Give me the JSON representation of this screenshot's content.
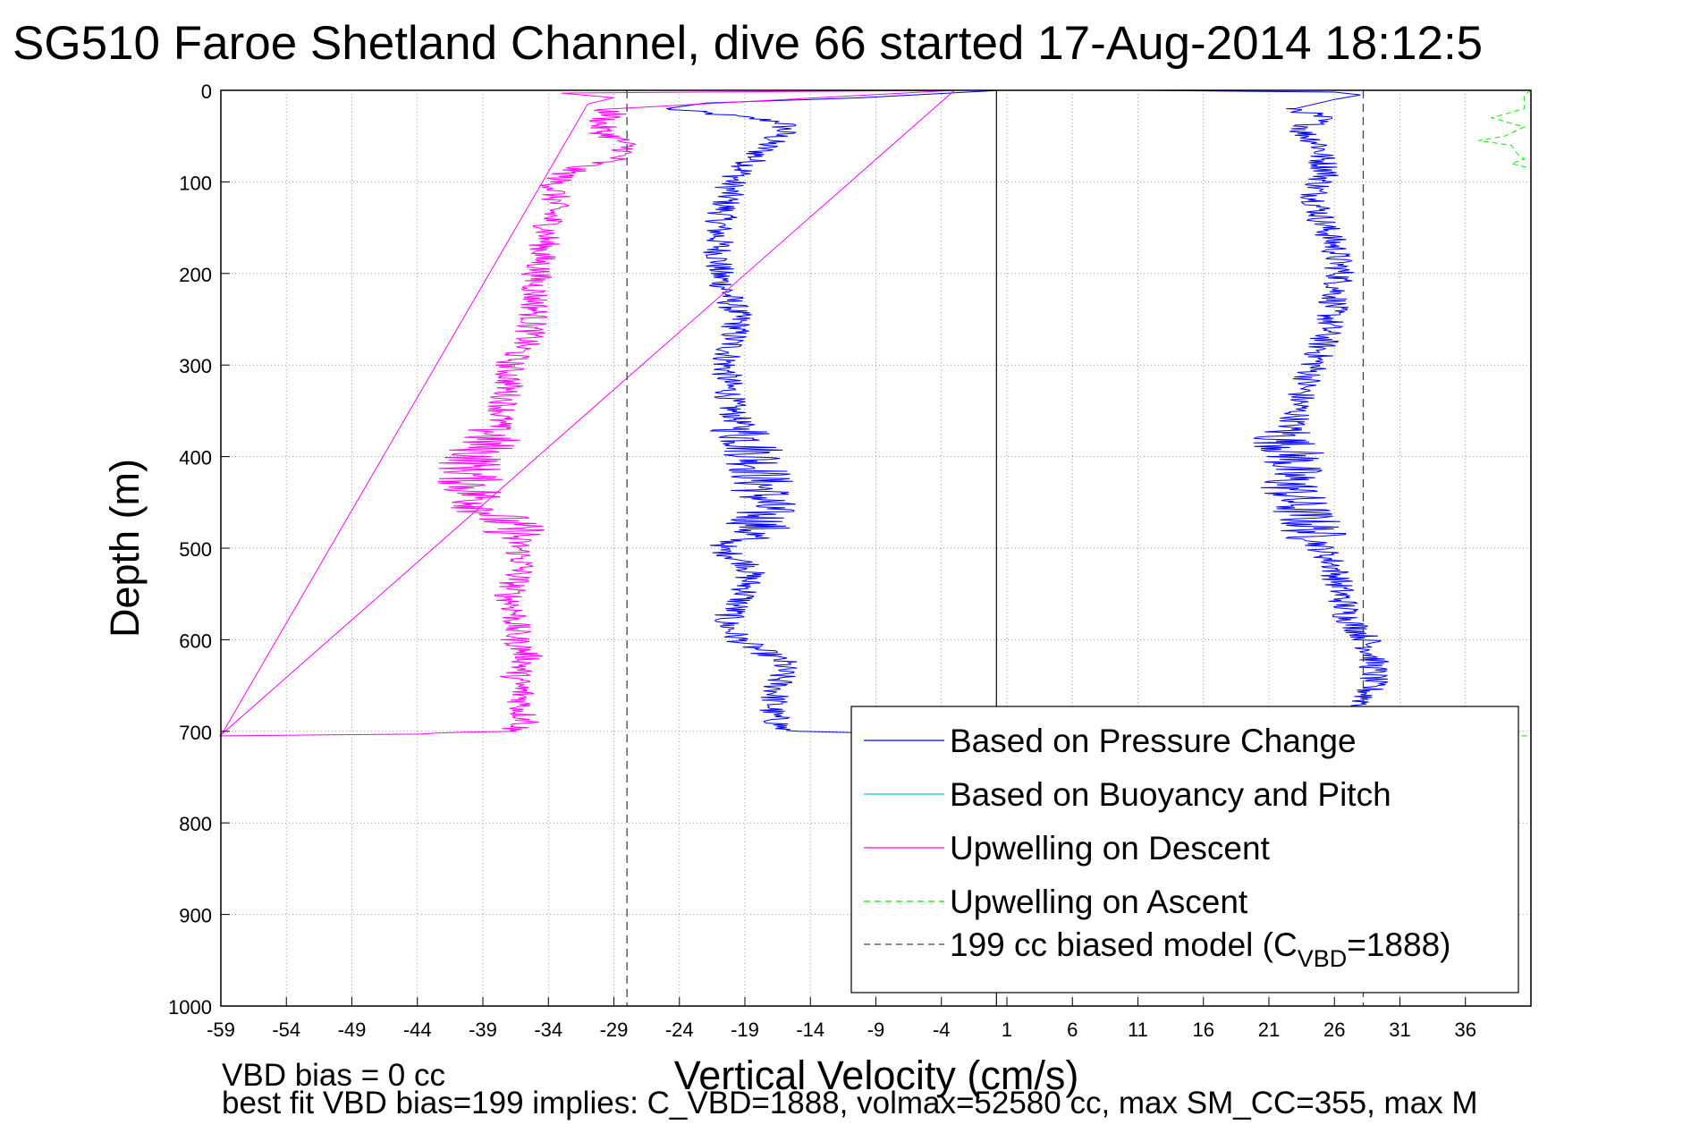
{
  "chart_data": {
    "type": "line",
    "title": "SG510 Faroe Shetland Channel, dive 66 started 17-Aug-2014 18:12:5",
    "xlabel": "Vertical Velocity (cm/s)",
    "ylabel": "Depth (m)",
    "xlim": [
      -59,
      41
    ],
    "ylim": [
      0,
      1000
    ],
    "y_reversed": true,
    "x_ticks": [
      "-59",
      "-54",
      "-49",
      "-44",
      "-39",
      "-34",
      "-29",
      "-24",
      "-19",
      "-14",
      "-9",
      "-4",
      "1",
      "6",
      "11",
      "16",
      "21",
      "26",
      "31",
      "36"
    ],
    "y_ticks": [
      "0",
      "100",
      "200",
      "300",
      "400",
      "500",
      "600",
      "700",
      "800",
      "900",
      "1000"
    ],
    "grid": true,
    "legend_position": "bottom-right",
    "footnotes": [
      "VBD bias = 0 cc",
      "best fit VBD bias=199 implies: C_VBD=1888, volmax=52580 cc, max SM_CC=355, max M"
    ],
    "series": [
      {
        "name": "Based on Pressure Change",
        "color": "#0000ff",
        "style": "solid",
        "points": [
          [
            0.5,
            0
          ],
          [
            -10,
            8
          ],
          [
            -22,
            14
          ],
          [
            -25,
            20
          ],
          [
            -20,
            28
          ],
          [
            -16,
            35
          ],
          [
            -16,
            45
          ],
          [
            -17,
            55
          ],
          [
            -18,
            70
          ],
          [
            -19,
            85
          ],
          [
            -20,
            100
          ],
          [
            -21,
            150
          ],
          [
            -21,
            200
          ],
          [
            -19.5,
            250
          ],
          [
            -20.5,
            300
          ],
          [
            -20,
            350
          ],
          [
            -18,
            400
          ],
          [
            -17.5,
            450
          ],
          [
            -18,
            480
          ],
          [
            -21,
            500
          ],
          [
            -18.5,
            520
          ],
          [
            -19,
            550
          ],
          [
            -20.5,
            580
          ],
          [
            -19.5,
            600
          ],
          [
            -16,
            625
          ],
          [
            -16.5,
            650
          ],
          [
            -17,
            680
          ],
          [
            -16,
            700
          ],
          [
            0,
            705
          ]
        ]
      },
      {
        "name": "Based on Pressure Change",
        "color": "#0000ff",
        "style": "solid",
        "points": [
          [
            11,
            0
          ],
          [
            26,
            2
          ],
          [
            28,
            5
          ],
          [
            26,
            10
          ],
          [
            23,
            20
          ],
          [
            25,
            30
          ],
          [
            23.5,
            45
          ],
          [
            25,
            60
          ],
          [
            25,
            75
          ],
          [
            25.5,
            90
          ],
          [
            24.5,
            110
          ],
          [
            25,
            140
          ],
          [
            26,
            170
          ],
          [
            26.5,
            200
          ],
          [
            26,
            230
          ],
          [
            25.5,
            260
          ],
          [
            24.5,
            300
          ],
          [
            23.5,
            330
          ],
          [
            23,
            360
          ],
          [
            22,
            380
          ],
          [
            23,
            400
          ],
          [
            22.5,
            420
          ],
          [
            23,
            450
          ],
          [
            24,
            470
          ],
          [
            25,
            500
          ],
          [
            26,
            520
          ],
          [
            26.5,
            550
          ],
          [
            27,
            575
          ],
          [
            28.5,
            600
          ],
          [
            29,
            620
          ],
          [
            29,
            640
          ],
          [
            28.5,
            660
          ],
          [
            28,
            680
          ],
          [
            28,
            705
          ]
        ]
      },
      {
        "name": "Based on Buoyancy and Pitch",
        "color": "#00cccc",
        "style": "solid",
        "points": []
      },
      {
        "name": "Upwelling on Descent",
        "color": "#ff00ff",
        "style": "solid",
        "points": [
          [
            -59,
            705
          ],
          [
            -44,
            703
          ],
          [
            -37,
            700
          ],
          [
            -35.5,
            690
          ],
          [
            -36,
            680
          ],
          [
            -36,
            660
          ],
          [
            -36.5,
            640
          ],
          [
            -35.5,
            620
          ],
          [
            -36.5,
            600
          ],
          [
            -36.5,
            570
          ],
          [
            -37,
            550
          ],
          [
            -36,
            520
          ],
          [
            -36.5,
            480
          ],
          [
            -39,
            455
          ],
          [
            -40,
            430
          ],
          [
            -40,
            410
          ],
          [
            -39,
            390
          ],
          [
            -38,
            370
          ],
          [
            -37.5,
            350
          ],
          [
            -37,
            320
          ],
          [
            -37,
            300
          ],
          [
            -35.5,
            270
          ],
          [
            -35,
            240
          ],
          [
            -35,
            210
          ],
          [
            -34.5,
            180
          ],
          [
            -34,
            150
          ],
          [
            -33.5,
            120
          ],
          [
            -33.5,
            100
          ],
          [
            -32,
            85
          ],
          [
            -29,
            75
          ],
          [
            -28,
            65
          ],
          [
            -28.5,
            55
          ],
          [
            -30,
            45
          ],
          [
            -30,
            35
          ],
          [
            -29,
            25
          ],
          [
            -31,
            15
          ],
          [
            -29,
            8
          ],
          [
            -33,
            3
          ],
          [
            -3,
            0
          ]
        ]
      },
      {
        "name": "Upwelling on Ascent",
        "color": "#00ee00",
        "style": "dashed",
        "points": [
          [
            41,
            0
          ],
          [
            40.5,
            5
          ],
          [
            40.5,
            20
          ],
          [
            38,
            30
          ],
          [
            40.5,
            40
          ],
          [
            39,
            50
          ],
          [
            37,
            55
          ],
          [
            39.5,
            60
          ],
          [
            40,
            70
          ],
          [
            40.5,
            75
          ],
          [
            39.5,
            80
          ],
          [
            41,
            85
          ]
        ]
      },
      {
        "name": "199 cc biased model (C_VBD=1888)",
        "color": "#444444",
        "style": "dashed",
        "points": [
          [
            -28,
            0
          ],
          [
            -28,
            1000
          ],
          [
            28.2,
            0
          ],
          [
            28.2,
            1000
          ]
        ]
      }
    ],
    "zero_line_x": 0.2,
    "legend": [
      {
        "label": "Based on Pressure Change",
        "color": "#0000ff",
        "style": "solid"
      },
      {
        "label": "Based on Buoyancy and Pitch",
        "color": "#00cccc",
        "style": "solid"
      },
      {
        "label": "Upwelling on Descent",
        "color": "#ff00ff",
        "style": "solid"
      },
      {
        "label": "Upwelling on Ascent",
        "color": "#00ee00",
        "style": "dashed"
      },
      {
        "label": "199 cc biased model (C",
        "sub": "VBD",
        "tail": "=1888)",
        "color": "#444444",
        "style": "dashed"
      }
    ]
  }
}
